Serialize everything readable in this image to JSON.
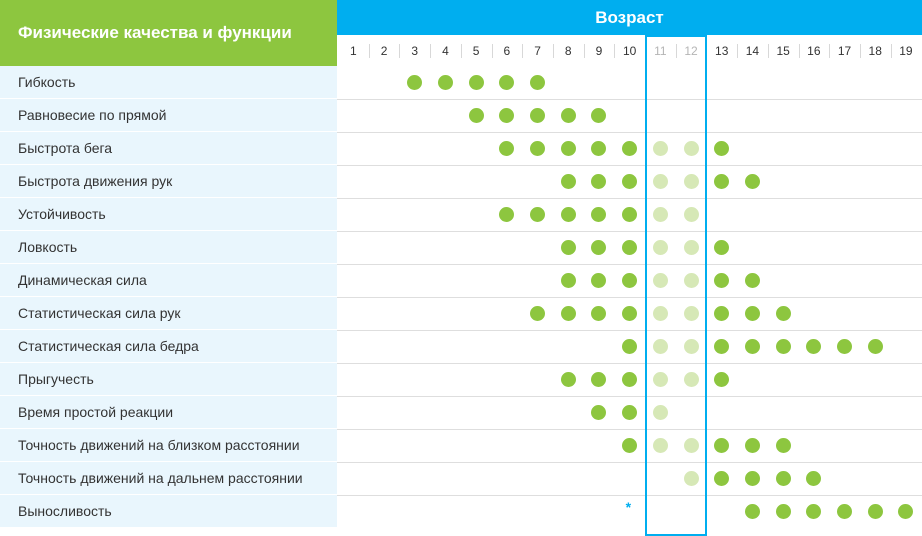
{
  "header": {
    "title": "Физические качества и функции",
    "age_label": "Возраст"
  },
  "ages": [
    "1",
    "2",
    "3",
    "4",
    "5",
    "6",
    "7",
    "8",
    "9",
    "10",
    "11",
    "12",
    "13",
    "14",
    "15",
    "16",
    "17",
    "18",
    "19"
  ],
  "highlight_ages": [
    "11",
    "12"
  ],
  "colors": {
    "green": "#8dc63f",
    "light_green": "#d6e8b6",
    "blue": "#00aeef",
    "row_bg": "#e9f6fd"
  },
  "rows": [
    {
      "label": "Гибкость",
      "dots": [
        3,
        4,
        5,
        6,
        7
      ]
    },
    {
      "label": "Равновесие по прямой",
      "dots": [
        5,
        6,
        7,
        8,
        9
      ]
    },
    {
      "label": "Быстрота бега",
      "dots": [
        6,
        7,
        8,
        9,
        10,
        11,
        12,
        13
      ]
    },
    {
      "label": "Быстрота движения рук",
      "dots": [
        8,
        9,
        10,
        11,
        12,
        13,
        14
      ]
    },
    {
      "label": "Устойчивость",
      "dots": [
        6,
        7,
        8,
        9,
        10,
        11,
        12
      ]
    },
    {
      "label": "Ловкость",
      "dots": [
        8,
        9,
        10,
        11,
        12,
        13
      ]
    },
    {
      "label": "Динамическая сила",
      "dots": [
        8,
        9,
        10,
        11,
        12,
        13,
        14
      ]
    },
    {
      "label": "Статистическая сила рук",
      "dots": [
        7,
        8,
        9,
        10,
        11,
        12,
        13,
        14,
        15
      ]
    },
    {
      "label": "Статистическая сила бедра",
      "dots": [
        10,
        11,
        12,
        13,
        14,
        15,
        16,
        17,
        18
      ]
    },
    {
      "label": "Прыгучесть",
      "dots": [
        8,
        9,
        10,
        11,
        12,
        13
      ]
    },
    {
      "label": "Время простой реакции",
      "dots": [
        9,
        10,
        11
      ]
    },
    {
      "label": "Точность движений на близком расстоянии",
      "dots": [
        10,
        11,
        12,
        13,
        14,
        15
      ]
    },
    {
      "label": "Точность движений на дальнем расстоянии",
      "dots": [
        12,
        13,
        14,
        15,
        16
      ]
    },
    {
      "label": "Выносливость",
      "dots": [
        14,
        15,
        16,
        17,
        18,
        19
      ],
      "marker": {
        "age": 10,
        "symbol": "*"
      }
    }
  ]
}
